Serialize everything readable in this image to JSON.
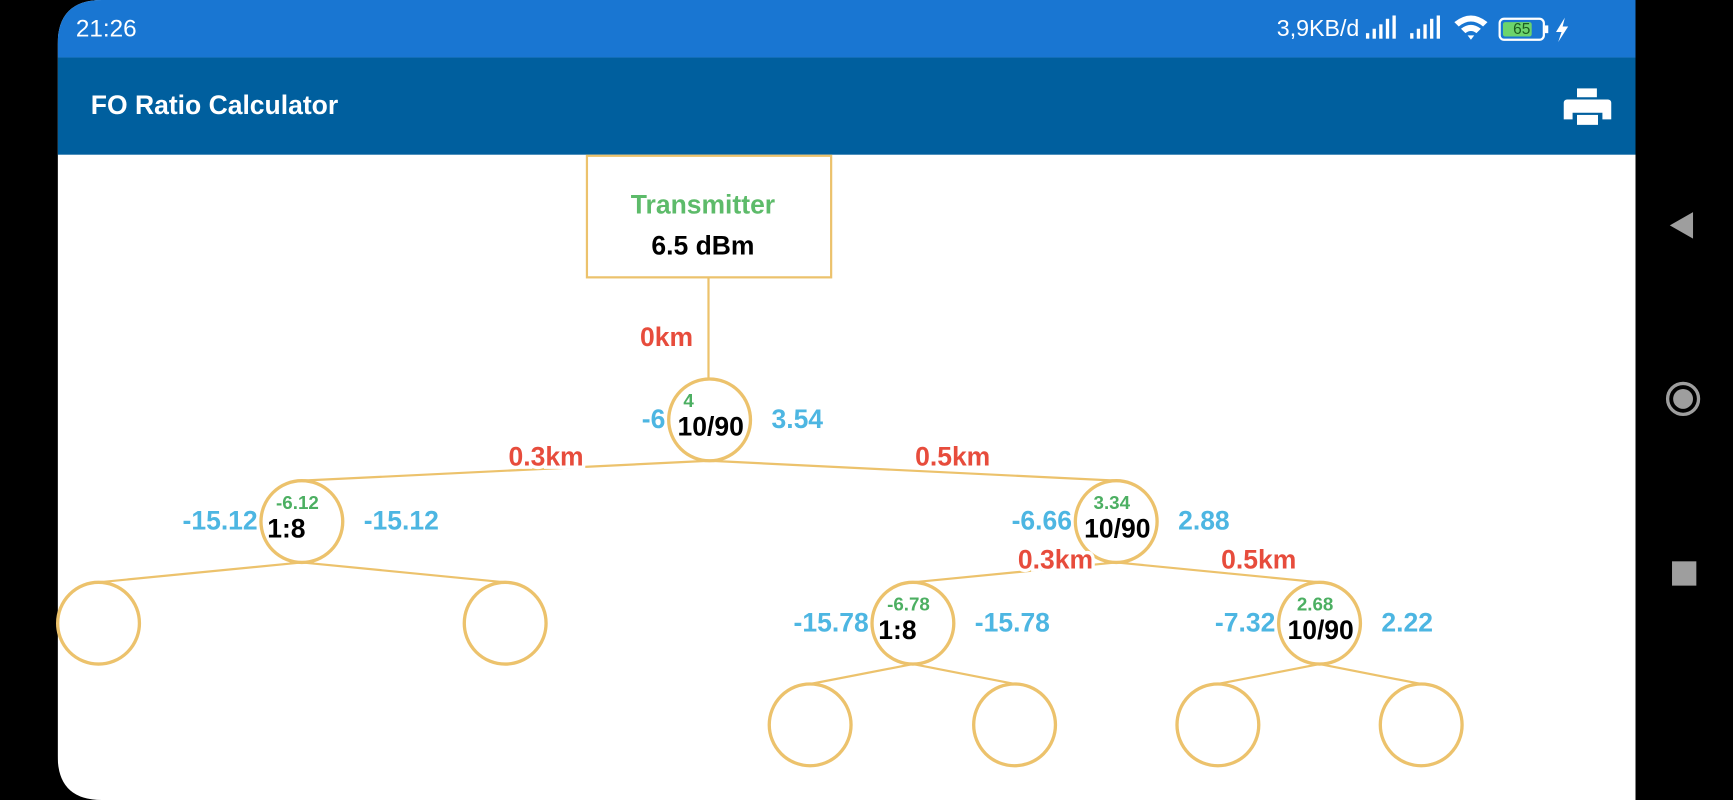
{
  "status_bar": {
    "time": "21:26",
    "network_speed": "3,9KB/d",
    "battery": "65"
  },
  "app_bar": {
    "title": "FO Ratio Calculator"
  },
  "transmitter": {
    "label": "Transmitter",
    "power": "6.5 dBm",
    "distance": "0km"
  },
  "nodes": [
    {
      "ratio": "10/90",
      "input": "4",
      "out_left": "-6",
      "out_right": "3.54"
    },
    {
      "ratio": "1:8",
      "input": "-6.12",
      "out_left": "-15.12",
      "out_right": "-15.12",
      "distance": "0.3km"
    },
    {
      "ratio": "10/90",
      "input": "3.34",
      "out_left": "-6.66",
      "out_right": "2.88",
      "distance": "0.5km"
    },
    {
      "ratio": "1:8",
      "input": "-6.78",
      "out_left": "-15.78",
      "out_right": "-15.78",
      "distance": "0.3km"
    },
    {
      "ratio": "10/90",
      "input": "2.68",
      "out_left": "-7.32",
      "out_right": "2.22",
      "distance": "0.5km"
    }
  ]
}
